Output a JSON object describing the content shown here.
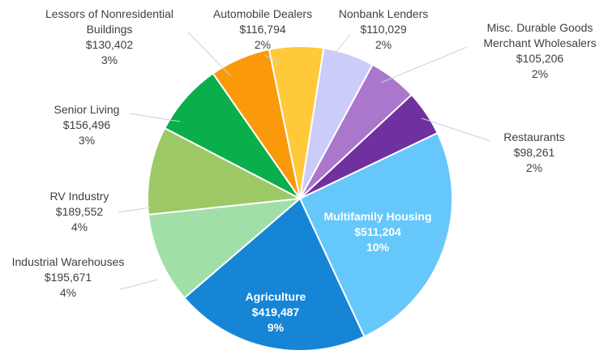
{
  "chart_data": {
    "type": "pie",
    "categories": [
      "Multifamily Housing",
      "Agriculture",
      "Industrial Warehouses",
      "RV Industry",
      "Senior Living",
      "Lessors of Nonresidential Buildings",
      "Automobile Dealers",
      "Nonbank Lenders",
      "Misc. Durable Goods Merchant Wholesalers",
      "Restaurants"
    ],
    "values": [
      511204,
      419487,
      195671,
      189552,
      156496,
      130402,
      116794,
      110029,
      105206,
      98261
    ],
    "value_labels": [
      "$511,204",
      "$419,487",
      "$195,671",
      "$189,552",
      "$156,496",
      "$130,402",
      "$116,794",
      "$110,029",
      "$105,206",
      "$98,261"
    ],
    "percents": [
      10,
      9,
      4,
      4,
      3,
      3,
      2,
      2,
      2,
      2
    ],
    "percent_labels": [
      "10%",
      "9%",
      "4%",
      "4%",
      "3%",
      "3%",
      "2%",
      "2%",
      "2%",
      "2%"
    ],
    "colors": [
      "#66c7fa",
      "#1685d6",
      "#a0e0a8",
      "#9cc866",
      "#0aae4a",
      "#fa9a0a",
      "#ffc93a",
      "#ccccfa",
      "#aa77cc",
      "#7030a0"
    ]
  }
}
